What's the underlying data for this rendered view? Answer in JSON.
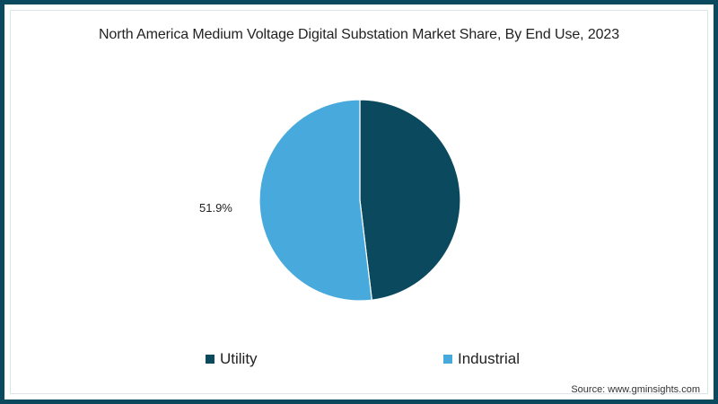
{
  "chart_data": {
    "type": "pie",
    "title": "North America Medium Voltage Digital Substation Market Share, By End Use, 2023",
    "categories": [
      "Utility",
      "Industrial"
    ],
    "values": [
      48.1,
      51.9
    ],
    "unit": "%",
    "colors": [
      "#0b4a5e",
      "#47a9dc"
    ],
    "data_labels": [
      {
        "category": "Industrial",
        "text": "51.9%",
        "position": "left-outside"
      }
    ],
    "start_angle": "12 o'clock",
    "direction": "clockwise",
    "legend_position": "bottom"
  },
  "title": "North America Medium Voltage Digital Substation Market Share, By End Use, 2023",
  "labels": {
    "industrial_pct": "51.9%"
  },
  "legend": [
    {
      "label": "Utility",
      "color": "#0b4a5e"
    },
    {
      "label": "Industrial",
      "color": "#47a9dc"
    }
  ],
  "source": "Source: www.gminsights.com",
  "colors": {
    "border": "#0b4a5e",
    "utility": "#0b4a5e",
    "industrial": "#47a9dc"
  }
}
